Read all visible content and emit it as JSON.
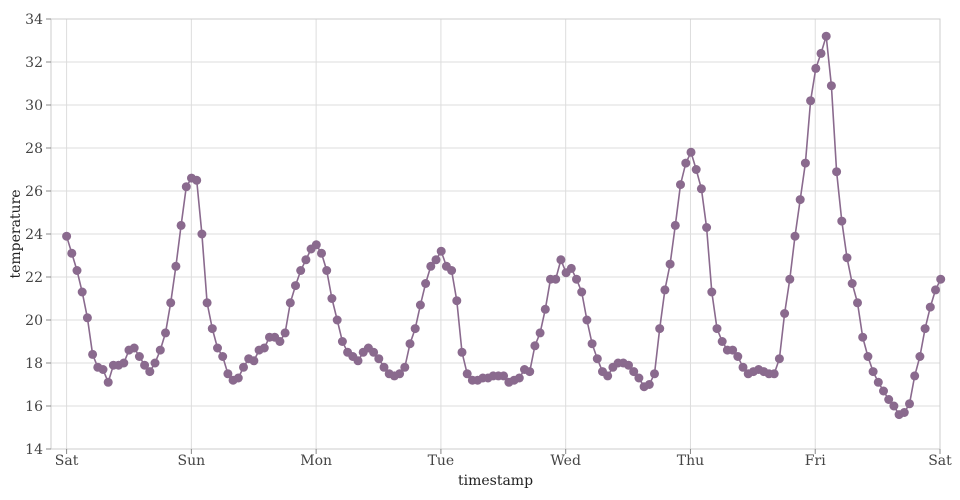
{
  "chart_data": {
    "type": "line",
    "xlabel": "timestamp",
    "ylabel": "temperature",
    "xlim": [
      -0.125,
      7.0
    ],
    "ylim": [
      14,
      34
    ],
    "x_ticks": [
      {
        "value": 0,
        "label": "Sat"
      },
      {
        "value": 1,
        "label": "Sun"
      },
      {
        "value": 2,
        "label": "Mon"
      },
      {
        "value": 3,
        "label": "Tue"
      },
      {
        "value": 4,
        "label": "Wed"
      },
      {
        "value": 5,
        "label": "Thu"
      },
      {
        "value": 6,
        "label": "Fri"
      },
      {
        "value": 7,
        "label": "Sat"
      }
    ],
    "y_ticks": [
      14,
      16,
      18,
      20,
      22,
      24,
      26,
      28,
      30,
      32,
      34
    ],
    "grid": true,
    "point_spacing_days": 0.0417,
    "series": [
      {
        "name": "",
        "color": "#8a6a8e",
        "values": [
          23.9,
          23.1,
          22.3,
          21.3,
          20.1,
          18.4,
          17.8,
          17.7,
          17.1,
          17.9,
          17.9,
          18.0,
          18.6,
          18.7,
          18.3,
          17.9,
          17.6,
          18.0,
          18.6,
          19.4,
          20.8,
          22.5,
          24.4,
          26.2,
          26.6,
          26.5,
          24.0,
          20.8,
          19.6,
          18.7,
          18.3,
          17.5,
          17.2,
          17.3,
          17.8,
          18.2,
          18.1,
          18.6,
          18.7,
          19.2,
          19.2,
          19.0,
          19.4,
          20.8,
          21.6,
          22.3,
          22.8,
          23.3,
          23.5,
          23.1,
          22.3,
          21.0,
          20.0,
          19.0,
          18.5,
          18.3,
          18.1,
          18.5,
          18.7,
          18.5,
          18.2,
          17.8,
          17.5,
          17.4,
          17.5,
          17.8,
          18.9,
          19.6,
          20.7,
          21.7,
          22.5,
          22.8,
          23.2,
          22.5,
          22.3,
          20.9,
          18.5,
          17.5,
          17.2,
          17.2,
          17.3,
          17.3,
          17.4,
          17.4,
          17.4,
          17.1,
          17.2,
          17.3,
          17.7,
          17.6,
          18.8,
          19.4,
          20.5,
          21.9,
          21.9,
          22.8,
          22.2,
          22.4,
          21.9,
          21.3,
          20.0,
          18.9,
          18.2,
          17.6,
          17.4,
          17.8,
          18.0,
          18.0,
          17.9,
          17.6,
          17.3,
          16.9,
          17.0,
          17.5,
          19.6,
          21.4,
          22.6,
          24.4,
          26.3,
          27.3,
          27.8,
          27.0,
          26.1,
          24.3,
          21.3,
          19.6,
          19.0,
          18.6,
          18.6,
          18.3,
          17.8,
          17.5,
          17.6,
          17.7,
          17.6,
          17.5,
          17.5,
          18.2,
          20.3,
          21.9,
          23.9,
          25.6,
          27.3,
          30.2,
          31.7,
          32.4,
          33.2,
          30.9,
          26.9,
          24.6,
          22.9,
          21.7,
          20.8,
          19.2,
          18.3,
          17.6,
          17.1,
          16.7,
          16.3,
          16.0,
          15.6,
          15.7,
          16.1,
          17.4,
          18.3,
          19.6,
          20.6,
          21.4,
          21.9
        ]
      }
    ]
  }
}
